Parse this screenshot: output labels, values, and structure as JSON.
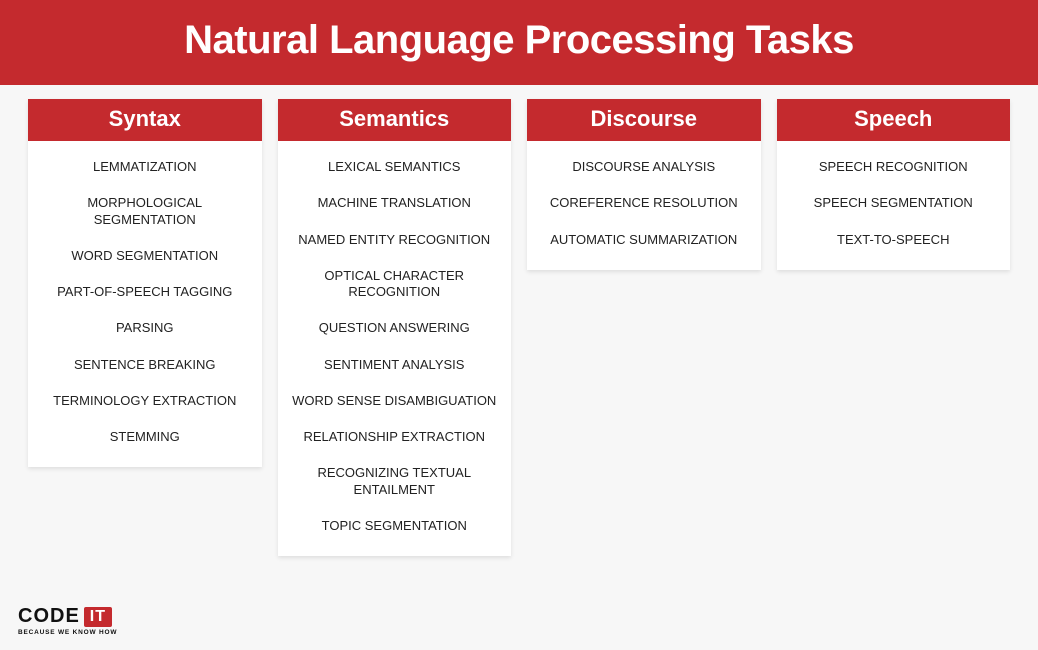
{
  "infographic": {
    "type": "infographic",
    "background_color": "#f7f7f7",
    "card_background": "#ffffff",
    "accent_color": "#c42a2e",
    "text_color": "#222222",
    "title_text_color": "#ffffff",
    "title_fontsize": 40,
    "column_header_fontsize": 22,
    "item_fontsize": 13,
    "title": "Natural Language Processing Tasks",
    "columns": [
      {
        "header": "Syntax",
        "items": [
          "LEMMATIZATION",
          "MORPHOLOGICAL SEGMENTATION",
          "WORD SEGMENTATION",
          "PART-OF-SPEECH TAGGING",
          "PARSING",
          "SENTENCE BREAKING",
          "TERMINOLOGY EXTRACTION",
          "STEMMING"
        ]
      },
      {
        "header": "Semantics",
        "items": [
          "LEXICAL SEMANTICS",
          "MACHINE TRANSLATION",
          "NAMED ENTITY RECOGNITION",
          "OPTICAL CHARACTER RECOGNITION",
          "QUESTION ANSWERING",
          "SENTIMENT ANALYSIS",
          "WORD SENSE DISAMBIGUATION",
          "RELATIONSHIP EXTRACTION",
          "RECOGNIZING TEXTUAL ENTAILMENT",
          "TOPIC SEGMENTATION"
        ]
      },
      {
        "header": "Discourse",
        "items": [
          "DISCOURSE ANALYSIS",
          "COREFERENCE RESOLUTION",
          "AUTOMATIC SUMMARIZATION"
        ]
      },
      {
        "header": "Speech",
        "items": [
          "SPEECH RECOGNITION",
          "SPEECH SEGMENTATION",
          "TEXT-TO-SPEECH"
        ]
      }
    ]
  },
  "logo": {
    "word_code": "CODE",
    "word_it": "IT",
    "tagline": "BECAUSE WE KNOW HOW",
    "code_color": "#111111",
    "it_bg": "#c42a2e",
    "it_color": "#ffffff"
  }
}
